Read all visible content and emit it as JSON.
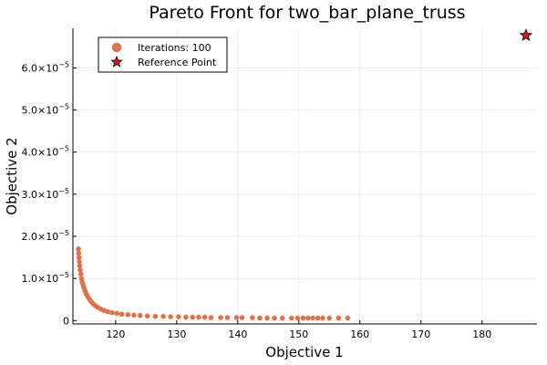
{
  "chart_data": {
    "type": "scatter",
    "title": "Pareto Front for two_bar_plane_truss",
    "xlabel": "Objective 1",
    "ylabel": "Objective 2",
    "xlim": [
      113,
      189
    ],
    "ylim": [
      -8e-07,
      6.94e-05
    ],
    "grid": true,
    "legend_position": "top-left",
    "x_ticks": [
      {
        "value": 120,
        "label": "120"
      },
      {
        "value": 130,
        "label": "130"
      },
      {
        "value": 140,
        "label": "140"
      },
      {
        "value": 150,
        "label": "150"
      },
      {
        "value": 160,
        "label": "160"
      },
      {
        "value": 170,
        "label": "170"
      },
      {
        "value": 180,
        "label": "180"
      }
    ],
    "y_ticks": [
      {
        "value": 0,
        "mantissa": "0",
        "exp": ""
      },
      {
        "value": 1e-05,
        "mantissa": "1.0×10",
        "exp": "−5"
      },
      {
        "value": 2e-05,
        "mantissa": "2.0×10",
        "exp": "−5"
      },
      {
        "value": 3e-05,
        "mantissa": "3.0×10",
        "exp": "−5"
      },
      {
        "value": 4e-05,
        "mantissa": "4.0×10",
        "exp": "−5"
      },
      {
        "value": 5e-05,
        "mantissa": "5.0×10",
        "exp": "−5"
      },
      {
        "value": 6e-05,
        "mantissa": "6.0×10",
        "exp": "−5"
      }
    ],
    "series": [
      {
        "name": "Iterations: 100",
        "marker": "circle",
        "color": "#e26f46",
        "points": [
          [
            113.9,
            1.7e-05
          ],
          [
            113.95,
            1.6e-05
          ],
          [
            114.0,
            1.5e-05
          ],
          [
            114.05,
            1.4e-05
          ],
          [
            114.1,
            1.3e-05
          ],
          [
            114.2,
            1.2e-05
          ],
          [
            114.3,
            1.1e-05
          ],
          [
            114.4,
            1e-05
          ],
          [
            114.5,
            9.2e-06
          ],
          [
            114.65,
            8.5e-06
          ],
          [
            114.8,
            7.8e-06
          ],
          [
            115.0,
            7e-06
          ],
          [
            115.2,
            6.3e-06
          ],
          [
            115.45,
            5.7e-06
          ],
          [
            115.7,
            5.1e-06
          ],
          [
            116.0,
            4.5e-06
          ],
          [
            116.3,
            4e-06
          ],
          [
            116.7,
            3.5e-06
          ],
          [
            117.1,
            3.1e-06
          ],
          [
            117.6,
            2.7e-06
          ],
          [
            118.1,
            2.4e-06
          ],
          [
            118.7,
            2.1e-06
          ],
          [
            119.4,
            1.9e-06
          ],
          [
            120.2,
            1.7e-06
          ],
          [
            121.0,
            1.5e-06
          ],
          [
            122.0,
            1.4e-06
          ],
          [
            123.0,
            1.3e-06
          ],
          [
            124.0,
            1.2e-06
          ],
          [
            125.2,
            1.1e-06
          ],
          [
            126.5,
            1e-06
          ],
          [
            127.8,
            1e-06
          ],
          [
            129.0,
            9e-07
          ],
          [
            130.3,
            9e-07
          ],
          [
            131.5,
            8e-07
          ],
          [
            132.6,
            8e-07
          ],
          [
            133.6,
            8e-07
          ],
          [
            134.6,
            8e-07
          ],
          [
            135.6,
            7e-07
          ],
          [
            137.2,
            7e-07
          ],
          [
            138.3,
            7e-07
          ],
          [
            139.8,
            7e-07
          ],
          [
            140.7,
            7e-07
          ],
          [
            142.4,
            7e-07
          ],
          [
            143.6,
            6e-07
          ],
          [
            144.8,
            6e-07
          ],
          [
            146.0,
            6e-07
          ],
          [
            147.3,
            6e-07
          ],
          [
            148.8,
            6e-07
          ],
          [
            149.8,
            6e-07
          ],
          [
            150.7,
            6e-07
          ],
          [
            151.5,
            6e-07
          ],
          [
            152.3,
            6e-07
          ],
          [
            153.1,
            6e-07
          ],
          [
            153.9,
            6e-07
          ],
          [
            155.0,
            6e-07
          ],
          [
            156.5,
            6e-07
          ],
          [
            158.0,
            6e-07
          ]
        ]
      },
      {
        "name": "Reference Point",
        "marker": "star",
        "color": "#e0141c",
        "points": [
          [
            187.2,
            6.77e-05
          ]
        ]
      }
    ]
  }
}
